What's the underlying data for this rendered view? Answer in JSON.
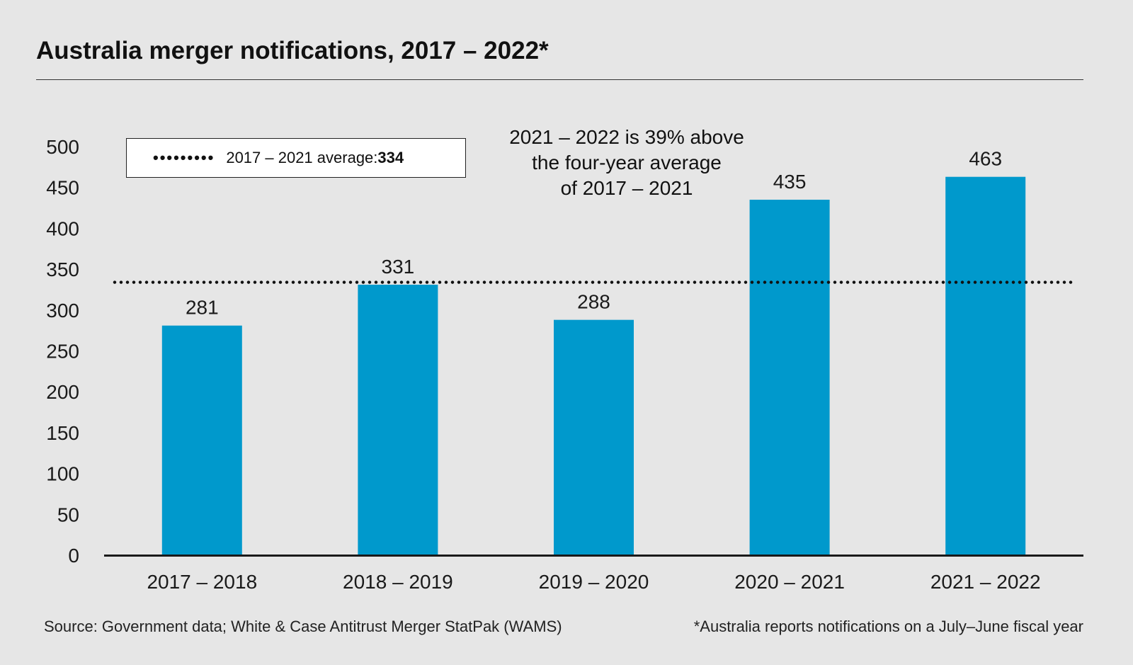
{
  "title": "Australia merger notifications, 2017 – 2022*",
  "legend": {
    "label": "2017 – 2021 average: ",
    "value": "334"
  },
  "annotation": {
    "lines": [
      "2021 – 2022 is 39% above",
      "the four-year average",
      "of 2017 – 2021"
    ]
  },
  "footer": {
    "source": "Source: Government data; White & Case Antitrust Merger StatPak (WAMS)",
    "note": "*Australia reports notifications on a July–June fiscal year"
  },
  "colors": {
    "bar": "#0099cc",
    "background": "#e6e6e6",
    "text": "#1a1a1a"
  },
  "chart_data": {
    "type": "bar",
    "categories": [
      "2017 – 2018",
      "2018 – 2019",
      "2019 – 2020",
      "2020 – 2021",
      "2021 – 2022"
    ],
    "values": [
      281,
      331,
      288,
      435,
      463
    ],
    "data_labels": [
      "281",
      "331",
      "288",
      "435",
      "463"
    ],
    "ylim": [
      0,
      500
    ],
    "yticks": [
      0,
      50,
      100,
      150,
      200,
      250,
      300,
      350,
      400,
      450,
      500
    ],
    "reference_line": {
      "value": 334,
      "style": "dotted"
    },
    "grid": false,
    "legend_position": "top-left"
  }
}
